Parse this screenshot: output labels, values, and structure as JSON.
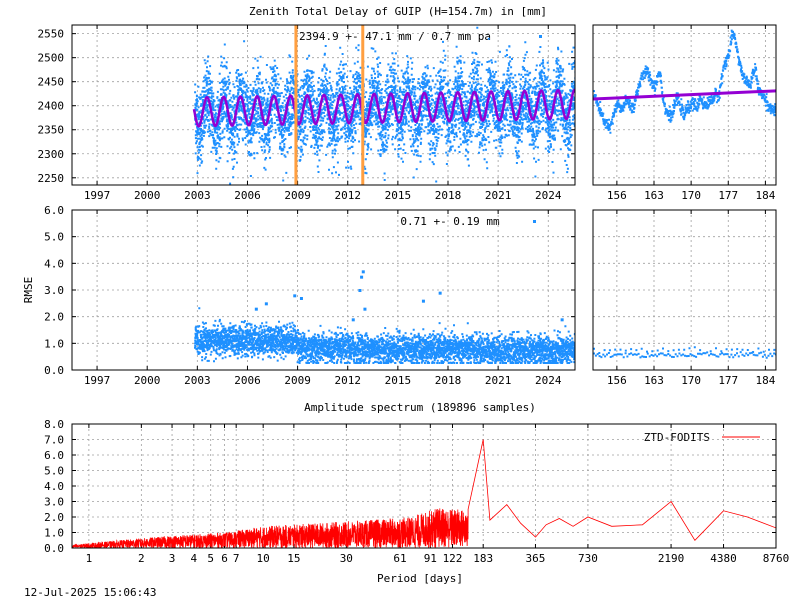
{
  "title": "Zenith Total Delay of GUIP (H=154.7m) in [mm]",
  "footer_timestamp": "12-Jul-2025 15:06:43",
  "colors": {
    "data": "#1e90ff",
    "fit": "#9400d3",
    "marker": "#ff9f40",
    "spectrum": "#ff0000",
    "frame": "#000000",
    "grid": "#a0a0a0"
  },
  "chart_data": [
    {
      "id": "ztd-main",
      "type": "scatter",
      "annotation": "2394.9 +-  47.1 mm /  0.7 mm pa",
      "x_tick_labels": [
        "1997",
        "2000",
        "2003",
        "2006",
        "2009",
        "2012",
        "2015",
        "2018",
        "2021",
        "2024"
      ],
      "x_ticks": [
        1997,
        2000,
        2003,
        2006,
        2009,
        2012,
        2015,
        2018,
        2021,
        2024
      ],
      "xlim": [
        1995.5,
        2025.6
      ],
      "y_tick_labels": [
        "2550",
        "2500",
        "2450",
        "2400",
        "2350",
        "2300",
        "2250"
      ],
      "y_ticks": [
        2550,
        2500,
        2450,
        2400,
        2350,
        2300,
        2250
      ],
      "ylim": [
        2235,
        2568
      ],
      "grid": true,
      "data_start": 2002.8,
      "data_end": 2025.6,
      "mean": 2394.9,
      "std": 47.1,
      "trend_mm_per_year": 0.7,
      "annual_amplitude": 30,
      "vertical_markers": [
        2008.9,
        2012.9
      ]
    },
    {
      "id": "ztd-recent",
      "type": "scatter",
      "x_tick_labels": [
        "156",
        "163",
        "170",
        "177",
        "184"
      ],
      "x_ticks": [
        156,
        163,
        170,
        177,
        184
      ],
      "xlim": [
        151.5,
        186
      ],
      "ylim": [
        2235,
        2568
      ],
      "grid": true,
      "series": [
        {
          "x": [
            151.5,
            152,
            152.5,
            153,
            153.5,
            154,
            154.5,
            155,
            155.5,
            156,
            156.5,
            157,
            157.5,
            158,
            158.5,
            159,
            159.5,
            160,
            160.5,
            161,
            161.5,
            162,
            162.5,
            163,
            163.5,
            164,
            164.5,
            165,
            165.5,
            166,
            166.5,
            167,
            167.5,
            168,
            168.5,
            169,
            169.5,
            170,
            170.5,
            171,
            171.5,
            172,
            172.5,
            173,
            173.5,
            174,
            174.5,
            175,
            175.5,
            176,
            176.5,
            177,
            177.5,
            178,
            178.5,
            179,
            179.5,
            180,
            180.5,
            181,
            181.5,
            182,
            182.5,
            183,
            183.5,
            184,
            184.5,
            185,
            185.5,
            186
          ],
          "y": [
            2425,
            2410,
            2395,
            2380,
            2370,
            2362,
            2355,
            2370,
            2395,
            2405,
            2392,
            2400,
            2410,
            2412,
            2398,
            2400,
            2425,
            2445,
            2458,
            2470,
            2472,
            2465,
            2448,
            2440,
            2465,
            2470,
            2420,
            2395,
            2385,
            2380,
            2390,
            2420,
            2410,
            2395,
            2380,
            2395,
            2400,
            2410,
            2405,
            2395,
            2420,
            2410,
            2400,
            2408,
            2412,
            2418,
            2425,
            2420,
            2452,
            2485,
            2500,
            2510,
            2545,
            2550,
            2515,
            2490,
            2465,
            2455,
            2450,
            2440,
            2470,
            2478,
            2430,
            2432,
            2420,
            2412,
            2400,
            2395,
            2392,
            2390
          ]
        }
      ],
      "fit": {
        "x": [
          151.5,
          186
        ],
        "y": [
          2414,
          2431
        ]
      }
    },
    {
      "id": "rmse-main",
      "type": "scatter",
      "ylabel": "RMSE",
      "annotation": "0.71 +-  0.19 mm",
      "x_tick_labels": [
        "1997",
        "2000",
        "2003",
        "2006",
        "2009",
        "2012",
        "2015",
        "2018",
        "2021",
        "2024"
      ],
      "x_ticks": [
        1997,
        2000,
        2003,
        2006,
        2009,
        2012,
        2015,
        2018,
        2021,
        2024
      ],
      "xlim": [
        1995.5,
        2025.6
      ],
      "y_tick_labels": [
        "6.0",
        "5.0",
        "4.0",
        "3.0",
        "2.0",
        "1.0",
        "0.0"
      ],
      "y_ticks": [
        6,
        5,
        4,
        3,
        2,
        1,
        0
      ],
      "ylim": [
        0,
        6
      ],
      "grid": true,
      "data_start": 2002.8,
      "data_end": 2025.6,
      "mean": 0.71,
      "std": 0.19,
      "outliers": [
        {
          "x": 2012.9,
          "y": 3.7
        },
        {
          "x": 2012.8,
          "y": 3.5
        },
        {
          "x": 2012.7,
          "y": 3.0
        },
        {
          "x": 2008.8,
          "y": 2.8
        },
        {
          "x": 2009.2,
          "y": 2.7
        },
        {
          "x": 2017.5,
          "y": 2.9
        },
        {
          "x": 2016.5,
          "y": 2.6
        },
        {
          "x": 2007.1,
          "y": 2.5
        },
        {
          "x": 2006.5,
          "y": 2.3
        },
        {
          "x": 2013.0,
          "y": 2.3
        },
        {
          "x": 2012.3,
          "y": 1.9
        },
        {
          "x": 2024.8,
          "y": 1.9
        }
      ]
    },
    {
      "id": "rmse-recent",
      "type": "scatter",
      "x_tick_labels": [
        "156",
        "163",
        "170",
        "177",
        "184"
      ],
      "x_ticks": [
        156,
        163,
        170,
        177,
        184
      ],
      "xlim": [
        151.5,
        186
      ],
      "ylim": [
        0,
        6
      ],
      "grid": true,
      "level": 0.6,
      "upper": 0.8
    },
    {
      "id": "amplitude-spectrum",
      "type": "line",
      "title": "Amplitude spectrum (189896 samples)",
      "xlabel": "Period [days]",
      "x_scale": "log",
      "x_tick_labels": [
        "1",
        "2",
        "3",
        "4",
        "5",
        "6",
        "7",
        "10",
        "15",
        "30",
        "61",
        "91",
        "122",
        "183",
        "365",
        "730",
        "2190",
        "4380",
        "8760"
      ],
      "x_ticks": [
        1,
        2,
        3,
        4,
        5,
        6,
        7,
        10,
        15,
        30,
        61,
        91,
        122,
        183,
        365,
        730,
        2190,
        4380,
        8760
      ],
      "xlim": [
        0.8,
        8760
      ],
      "y_tick_labels": [
        "8.0",
        "7.0",
        "6.0",
        "5.0",
        "4.0",
        "3.0",
        "2.0",
        "1.0",
        "0.0"
      ],
      "y_ticks": [
        8,
        7,
        6,
        5,
        4,
        3,
        2,
        1,
        0
      ],
      "ylim": [
        0,
        8
      ],
      "grid": true,
      "legend": "top-right",
      "series": [
        {
          "name": "ZTD-FODITS",
          "x": [
            0.8,
            1.5,
            3,
            6,
            10,
            20,
            40,
            70,
            100,
            150,
            183,
            200,
            250,
            300,
            365,
            420,
            500,
            600,
            730,
            1000,
            1500,
            2190,
            3000,
            4380,
            6000,
            8760
          ],
          "y": [
            0.2,
            0.5,
            0.8,
            1.0,
            1.4,
            1.6,
            1.8,
            2.0,
            2.6,
            2.5,
            7.0,
            1.8,
            2.8,
            1.6,
            0.7,
            1.5,
            1.9,
            1.4,
            2.0,
            1.4,
            1.5,
            3.0,
            0.5,
            2.4,
            2.0,
            1.3
          ]
        }
      ]
    }
  ]
}
